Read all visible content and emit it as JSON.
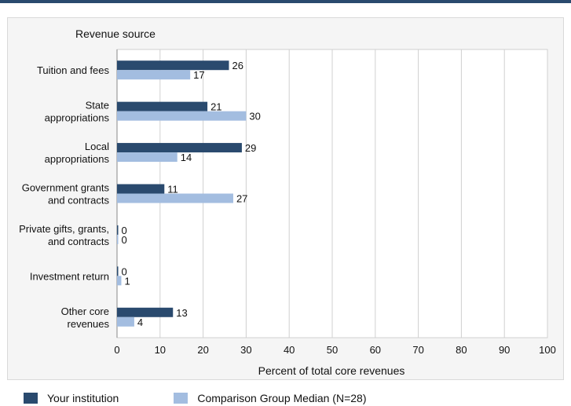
{
  "chart_data": {
    "type": "bar",
    "orientation": "horizontal",
    "category_axis_title": "Revenue source",
    "xlabel": "Percent of total core revenues",
    "xlim": [
      0,
      100
    ],
    "xticks": [
      0,
      10,
      20,
      30,
      40,
      50,
      60,
      70,
      80,
      90,
      100
    ],
    "grid": "vertical",
    "legend_position": "bottom",
    "categories": [
      [
        "Tuition and fees"
      ],
      [
        "State",
        "appropriations"
      ],
      [
        "Local",
        "appropriations"
      ],
      [
        "Government grants",
        "and contracts"
      ],
      [
        "Private gifts, grants,",
        "and contracts"
      ],
      [
        "Investment return"
      ],
      [
        "Other core",
        "revenues"
      ]
    ],
    "series": [
      {
        "name": "Your institution",
        "color": "#2a4a6e",
        "values": [
          26,
          21,
          29,
          11,
          0,
          0,
          13
        ]
      },
      {
        "name": "Comparison Group Median (N=28)",
        "color": "#a3bde0",
        "values": [
          17,
          30,
          14,
          27,
          0,
          1,
          4
        ]
      }
    ]
  }
}
